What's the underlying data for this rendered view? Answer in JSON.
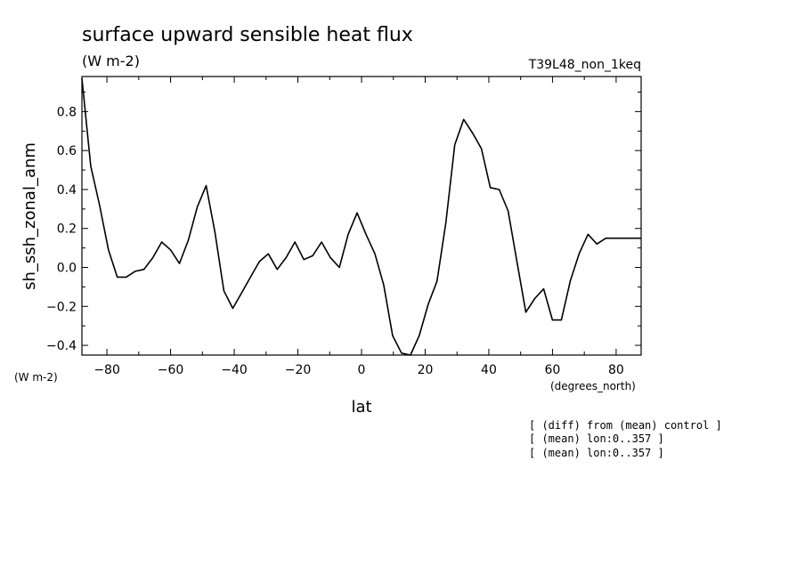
{
  "chart_data": {
    "type": "line",
    "title": "surface upward sensible heat flux",
    "subtitle": "(W m-2)",
    "dataset": "T39L48_non_1keq",
    "xlabel": "lat",
    "xunit": "(degrees_north)",
    "ylabel": "sh_ssh_zonal_anm",
    "yunit": "(W m-2)",
    "xlim": [
      -87.86,
      87.86
    ],
    "ylim": [
      -0.45,
      0.98
    ],
    "xticks": [
      -80,
      -60,
      -40,
      -20,
      0,
      20,
      40,
      60,
      80
    ],
    "xtick_labels": [
      "-80",
      "-60",
      "-40",
      "-20",
      "0",
      "20",
      "40",
      "60",
      "80"
    ],
    "yticks": [
      -0.4,
      -0.2,
      0.0,
      0.2,
      0.4,
      0.6,
      0.8
    ],
    "ytick_labels": [
      "-0.4",
      "-0.2",
      "0.0",
      "0.2",
      "0.4",
      "0.6",
      "0.8"
    ],
    "grid": false,
    "series": [
      {
        "x": [
          -87.86,
          -85.1,
          -82.31,
          -79.53,
          -76.74,
          -73.95,
          -71.16,
          -68.37,
          -65.58,
          -62.79,
          -60.0,
          -57.21,
          -54.42,
          -51.63,
          -48.84,
          -46.05,
          -43.26,
          -40.47,
          -37.67,
          -34.88,
          -32.09,
          -29.3,
          -26.51,
          -23.72,
          -20.93,
          -18.14,
          -15.35,
          -12.56,
          -9.77,
          -6.98,
          -4.19,
          -1.4,
          1.4,
          4.19,
          6.98,
          9.77,
          12.56,
          15.35,
          18.14,
          20.93,
          23.72,
          26.51,
          29.3,
          32.09,
          34.88,
          37.67,
          40.47,
          43.26,
          46.05,
          48.84,
          51.63,
          54.42,
          57.21,
          60.0,
          62.79,
          65.58,
          68.37,
          71.16,
          73.95,
          76.74,
          79.53,
          82.31,
          85.1,
          87.86
        ],
        "values": [
          0.97,
          0.52,
          0.32,
          0.09,
          -0.05,
          -0.05,
          -0.02,
          -0.01,
          0.05,
          0.13,
          0.09,
          0.02,
          0.14,
          0.31,
          0.42,
          0.18,
          -0.12,
          -0.21,
          -0.13,
          -0.05,
          0.03,
          0.07,
          -0.01,
          0.05,
          0.13,
          0.04,
          0.06,
          0.13,
          0.05,
          0.0,
          0.17,
          0.28,
          0.17,
          0.07,
          -0.09,
          -0.35,
          -0.44,
          -0.45,
          -0.35,
          -0.19,
          -0.07,
          0.23,
          0.63,
          0.76,
          0.69,
          0.61,
          0.41,
          0.4,
          0.29,
          0.03,
          -0.23,
          -0.16,
          -0.11,
          -0.27,
          -0.27,
          -0.07,
          0.07,
          0.17,
          0.12,
          0.15,
          0.15,
          0.15,
          0.15,
          0.15
        ]
      }
    ]
  },
  "notes": [
    "[ (diff) from (mean) control ]",
    "[ (mean) lon:0..357 ]",
    "[ (mean) lon:0..357 ]"
  ]
}
